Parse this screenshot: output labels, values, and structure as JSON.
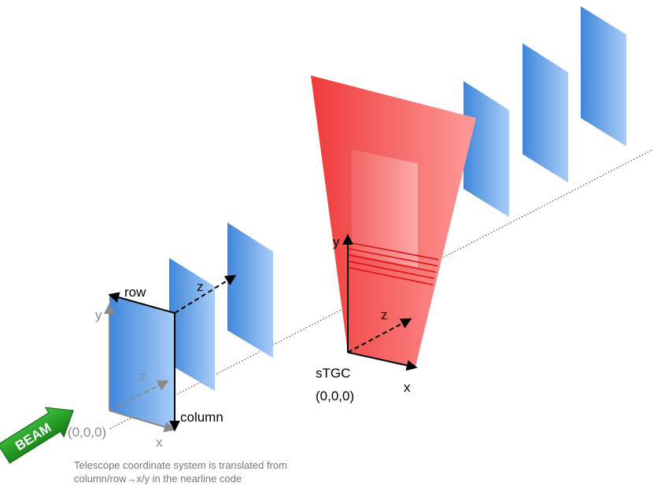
{
  "beam": {
    "label": "BEAM",
    "color": "#1e9a1e"
  },
  "telescope": {
    "axis_row": "row",
    "axis_column": "column",
    "axis_y": "y",
    "axis_x": "x",
    "axis_z_front": "z",
    "axis_z_back": "z",
    "origin": "(0,0,0)",
    "plane_color": "#4a90e2"
  },
  "stgc": {
    "name": "sTGC",
    "origin": "(0,0,0)",
    "axis_x": "x",
    "axis_y": "y",
    "axis_z": "z",
    "color": "#f03c3c"
  },
  "caption": {
    "line1": "Telescope coordinate system is translated from",
    "line2": "column/row→x/y in the nearline code"
  }
}
